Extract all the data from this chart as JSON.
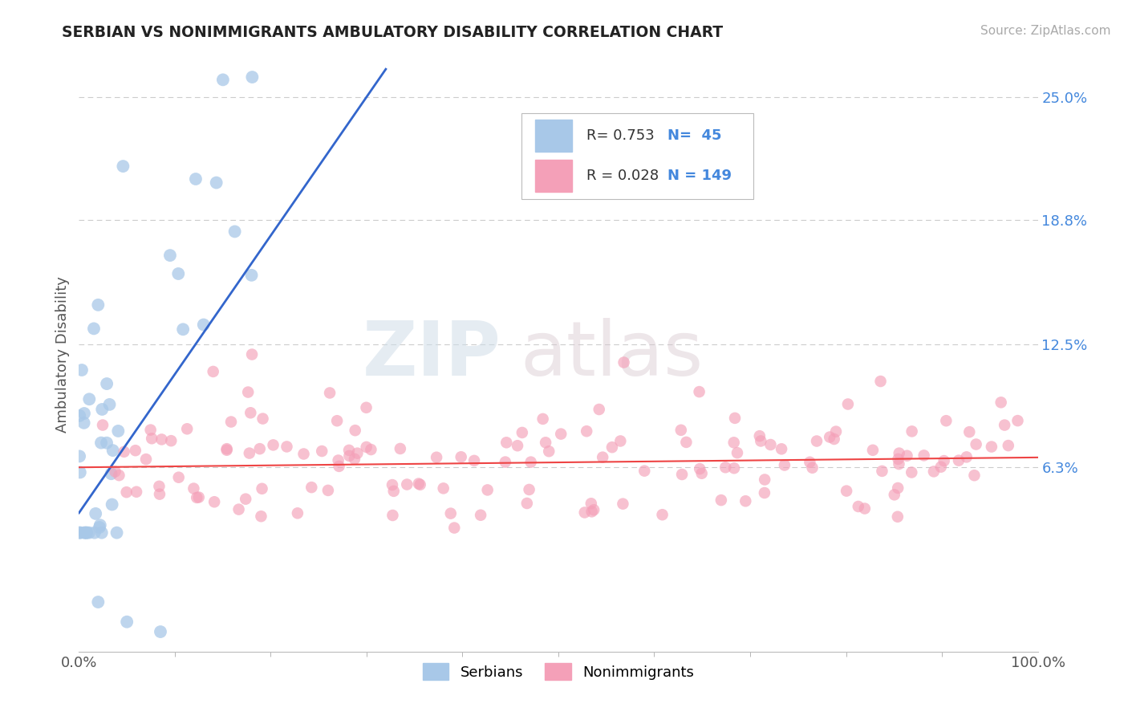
{
  "title": "SERBIAN VS NONIMMIGRANTS AMBULATORY DISABILITY CORRELATION CHART",
  "source": "Source: ZipAtlas.com",
  "ylabel": "Ambulatory Disability",
  "xlim": [
    0,
    1.0
  ],
  "ylim": [
    -0.03,
    0.27
  ],
  "yticks": [
    0.063,
    0.125,
    0.188,
    0.25
  ],
  "ytick_labels": [
    "6.3%",
    "12.5%",
    "18.8%",
    "25.0%"
  ],
  "xtick_labels": [
    "0.0%",
    "100.0%"
  ],
  "r_serbian": 0.753,
  "n_serbian": 45,
  "r_nonimmigrant": 0.028,
  "n_nonimmigrant": 149,
  "serbian_color": "#a8c8e8",
  "nonimmigrant_color": "#f4a0b8",
  "regression_serbian_color": "#3366cc",
  "regression_nonimmigrant_color": "#ee4444",
  "watermark_zip": "ZIP",
  "watermark_atlas": "atlas",
  "legend_value_color": "#4488dd",
  "legend_label_color": "#333333"
}
